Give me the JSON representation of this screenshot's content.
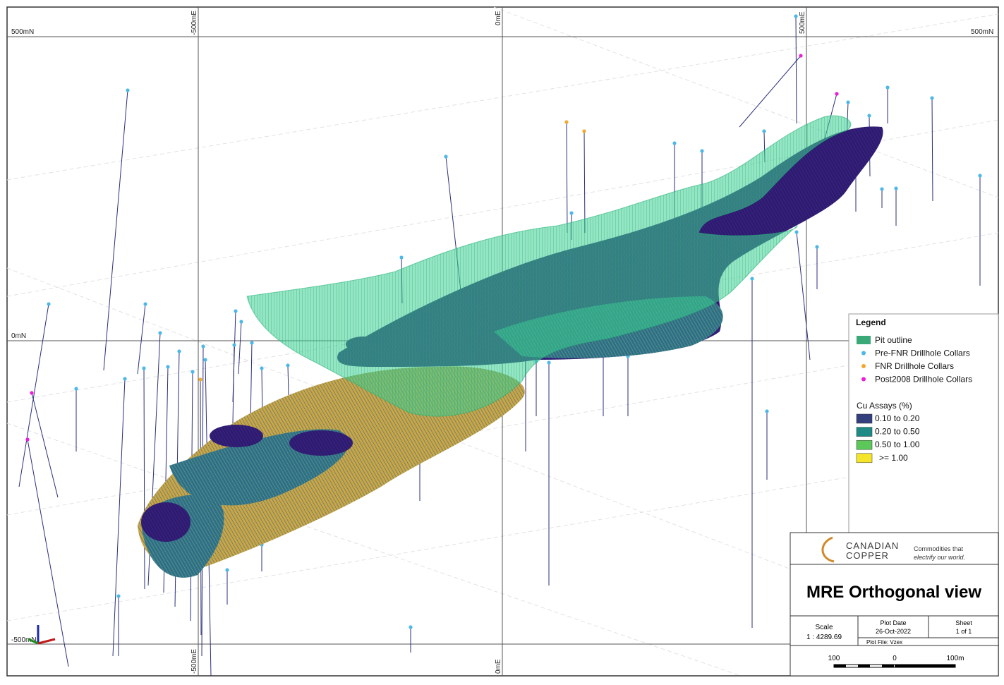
{
  "grid_labels": {
    "north": [
      "500mN",
      "500mN",
      "0mN",
      "-500mN"
    ],
    "east_top": [
      "-500mE",
      "0mE",
      "500mE"
    ],
    "east_bottom": [
      "-500mE",
      "0mE"
    ]
  },
  "legend": {
    "title": "Legend",
    "symbols": [
      {
        "label": "Pit outline",
        "color": "#3aa877"
      },
      {
        "label": "Pre-FNR Drillhole Collars",
        "color": "#4db8e8"
      },
      {
        "label": "FNR Drillhole Collars",
        "color": "#f0a830"
      },
      {
        "label": "Post2008 Drillhole Collars",
        "color": "#e81ed8"
      }
    ],
    "assay_title": "Cu Assays (%)",
    "assays": [
      {
        "label": "0.10 to 0.20",
        "color": "#34407e"
      },
      {
        "label": "0.20 to 0.50",
        "color": "#1f8a85"
      },
      {
        "label": "0.50 to 1.00",
        "color": "#5cc85a"
      },
      {
        "label": ">= 1.00",
        "color": "#f5e52a"
      }
    ]
  },
  "title_block": {
    "logo_line1": "CANADIAN",
    "logo_line2": "COPPER",
    "tagline1": "Commodities that",
    "tagline2": "electrify our world.",
    "title": "MRE Orthogonal view",
    "scale_label": "Scale",
    "scale_value": "1 : 4289.69",
    "plot_date_label": "Plot Date",
    "plot_date": "26-Oct-2022",
    "sheet_label": "Sheet",
    "sheet_value": "1 of 1",
    "plot_file": "Plot File: Vzex",
    "scale_bar": [
      "100",
      "0",
      "100m"
    ]
  }
}
